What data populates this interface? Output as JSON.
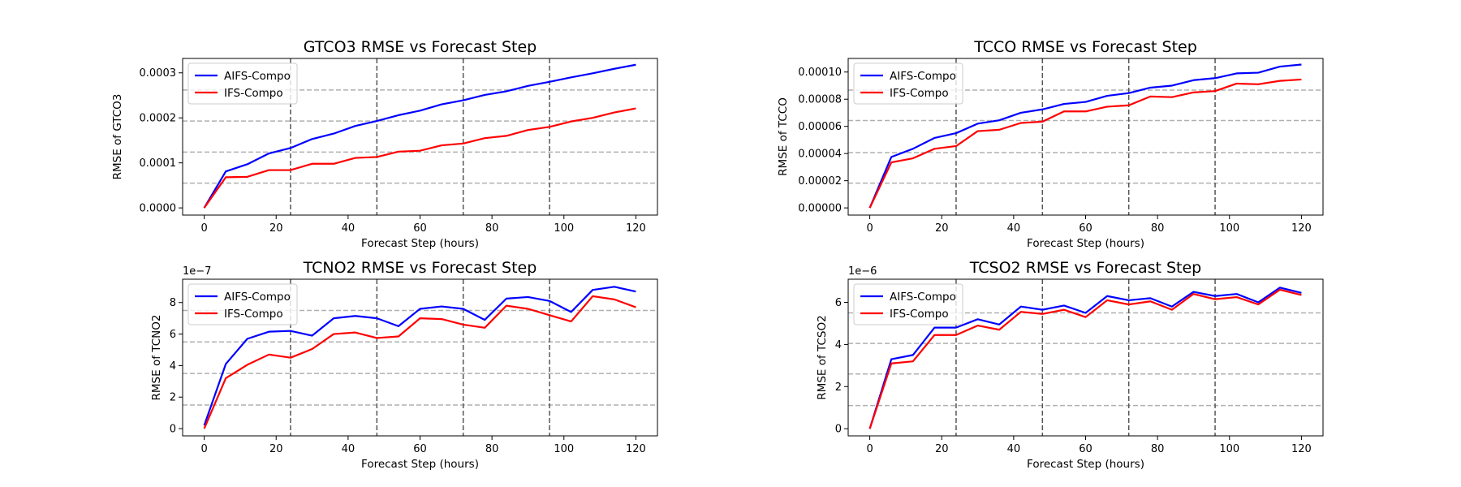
{
  "chart_data": [
    {
      "type": "line",
      "title": "GTCO3 RMSE vs Forecast Step",
      "xlabel": "Forecast Step (hours)",
      "ylabel": "RMSE of GTCO3",
      "offset_text": "",
      "xlim": [
        -6,
        126
      ],
      "ylim": [
        -1.6e-05,
        0.000332
      ],
      "xticks": [
        0,
        20,
        40,
        60,
        80,
        100,
        120
      ],
      "xtick_labels": [
        "0",
        "20",
        "40",
        "60",
        "80",
        "100",
        "120"
      ],
      "yticks": [
        0,
        0.0001,
        0.0002,
        0.0003
      ],
      "ytick_labels": [
        "0.0000",
        "0.0001",
        "0.0002",
        "0.0003"
      ],
      "vlines": [
        24,
        48,
        72,
        96
      ],
      "hlines": [
        5.5e-05,
        0.000124,
        0.000193,
        0.000262
      ],
      "legend": "upper left",
      "x": [
        0,
        6,
        12,
        18,
        24,
        30,
        36,
        42,
        48,
        54,
        60,
        66,
        72,
        78,
        84,
        90,
        96,
        102,
        108,
        114,
        120
      ],
      "series": [
        {
          "name": "AIFS-Compo",
          "color": "#0000ff",
          "values": [
            0.0,
            8.1e-05,
            9.7e-05,
            0.000121,
            0.000133,
            0.000153,
            0.000165,
            0.000182,
            0.000193,
            0.000206,
            0.000216,
            0.00023,
            0.000239,
            0.000251,
            0.000259,
            0.000271,
            0.00028,
            0.00029,
            0.000299,
            0.000309,
            0.000318
          ]
        },
        {
          "name": "IFS-Compo",
          "color": "#ff0000",
          "values": [
            0.0,
            6.8e-05,
            6.9e-05,
            8.4e-05,
            8.4e-05,
            9.8e-05,
            9.8e-05,
            0.000111,
            0.000113,
            0.000125,
            0.000127,
            0.000139,
            0.000143,
            0.000155,
            0.00016,
            0.000173,
            0.00018,
            0.000192,
            0.0002,
            0.000212,
            0.000221
          ]
        }
      ]
    },
    {
      "type": "line",
      "title": "TCCO RMSE vs Forecast Step",
      "xlabel": "Forecast Step (hours)",
      "ylabel": "RMSE of TCCO",
      "offset_text": "",
      "xlim": [
        -6,
        126
      ],
      "ylim": [
        -5.3e-06,
        0.00011
      ],
      "xticks": [
        0,
        20,
        40,
        60,
        80,
        100,
        120
      ],
      "xtick_labels": [
        "0",
        "20",
        "40",
        "60",
        "80",
        "100",
        "120"
      ],
      "yticks": [
        0,
        2e-05,
        4e-05,
        6e-05,
        8e-05,
        0.0001
      ],
      "ytick_labels": [
        "0.00000",
        "0.00002",
        "0.00004",
        "0.00006",
        "0.00008",
        "0.00010"
      ],
      "vlines": [
        24,
        48,
        72,
        96
      ],
      "hlines": [
        1.82e-05,
        4.07e-05,
        6.43e-05,
        8.67e-05
      ],
      "legend": "upper left",
      "x": [
        0,
        6,
        12,
        18,
        24,
        30,
        36,
        42,
        48,
        54,
        60,
        66,
        72,
        78,
        84,
        90,
        96,
        102,
        108,
        114,
        120
      ],
      "series": [
        {
          "name": "AIFS-Compo",
          "color": "#0000ff",
          "values": [
            0.0,
            3.75e-05,
            4.35e-05,
            5.15e-05,
            5.5e-05,
            6.2e-05,
            6.45e-05,
            7e-05,
            7.25e-05,
            7.65e-05,
            7.8e-05,
            8.25e-05,
            8.45e-05,
            8.85e-05,
            9e-05,
            9.4e-05,
            9.55e-05,
            9.9e-05,
            9.95e-05,
            0.000104,
            0.0001055
          ]
        },
        {
          "name": "IFS-Compo",
          "color": "#ff0000",
          "values": [
            0.0,
            3.35e-05,
            3.65e-05,
            4.35e-05,
            4.55e-05,
            5.65e-05,
            5.75e-05,
            6.25e-05,
            6.35e-05,
            7.1e-05,
            7.1e-05,
            7.45e-05,
            7.55e-05,
            8.2e-05,
            8.15e-05,
            8.5e-05,
            8.6e-05,
            9.15e-05,
            9.1e-05,
            9.35e-05,
            9.45e-05
          ]
        }
      ]
    },
    {
      "type": "line",
      "title": "TCNO2 RMSE vs Forecast Step",
      "xlabel": "Forecast Step (hours)",
      "ylabel": "RMSE of TCNO2",
      "offset_text": "1e−7",
      "xlim": [
        -6,
        126
      ],
      "ylim": [
        -0.46,
        9.48
      ],
      "xticks": [
        0,
        20,
        40,
        60,
        80,
        100,
        120
      ],
      "xtick_labels": [
        "0",
        "20",
        "40",
        "60",
        "80",
        "100",
        "120"
      ],
      "yticks": [
        0,
        2,
        4,
        6,
        8
      ],
      "ytick_labels": [
        "0",
        "2",
        "4",
        "6",
        "8"
      ],
      "vlines": [
        24,
        48,
        72,
        96
      ],
      "hlines": [
        1.5,
        3.5,
        5.5,
        7.5
      ],
      "legend": "upper left",
      "x": [
        0,
        6,
        12,
        18,
        24,
        30,
        36,
        42,
        48,
        54,
        60,
        66,
        72,
        78,
        84,
        90,
        96,
        102,
        108,
        114,
        120
      ],
      "series": [
        {
          "name": "AIFS-Compo",
          "color": "#0000ff",
          "values": [
            0.2,
            4.1,
            5.7,
            6.15,
            6.2,
            5.9,
            7.0,
            7.15,
            7.0,
            6.5,
            7.6,
            7.75,
            7.6,
            6.9,
            8.25,
            8.35,
            8.1,
            7.4,
            8.8,
            9.0,
            8.7
          ]
        },
        {
          "name": "IFS-Compo",
          "color": "#ff0000",
          "values": [
            0.0,
            3.2,
            4.05,
            4.7,
            4.5,
            5.05,
            6.0,
            6.1,
            5.75,
            5.85,
            7.0,
            6.95,
            6.6,
            6.4,
            7.8,
            7.6,
            7.2,
            6.8,
            8.4,
            8.2,
            7.7
          ]
        }
      ]
    },
    {
      "type": "line",
      "title": "TCSO2 RMSE vs Forecast Step",
      "xlabel": "Forecast Step (hours)",
      "ylabel": "RMSE of TCSO2",
      "offset_text": "1e−6",
      "xlim": [
        -6,
        126
      ],
      "ylim": [
        -0.34,
        7.1
      ],
      "xticks": [
        0,
        20,
        40,
        60,
        80,
        100,
        120
      ],
      "xtick_labels": [
        "0",
        "20",
        "40",
        "60",
        "80",
        "100",
        "120"
      ],
      "yticks": [
        0,
        2,
        4,
        6
      ],
      "ytick_labels": [
        "0",
        "2",
        "4",
        "6"
      ],
      "vlines": [
        24,
        48,
        72,
        96
      ],
      "hlines": [
        1.1,
        2.6,
        4.05,
        5.5
      ],
      "legend": "upper left",
      "x": [
        0,
        6,
        12,
        18,
        24,
        30,
        36,
        42,
        48,
        54,
        60,
        66,
        72,
        78,
        84,
        90,
        96,
        102,
        108,
        114,
        120
      ],
      "series": [
        {
          "name": "AIFS-Compo",
          "color": "#0000ff",
          "values": [
            0.0,
            3.3,
            3.5,
            4.8,
            4.8,
            5.2,
            4.95,
            5.8,
            5.65,
            5.85,
            5.5,
            6.3,
            6.1,
            6.2,
            5.8,
            6.5,
            6.3,
            6.4,
            6.0,
            6.7,
            6.45
          ]
        },
        {
          "name": "IFS-Compo",
          "color": "#ff0000",
          "values": [
            0.0,
            3.1,
            3.2,
            4.45,
            4.45,
            4.9,
            4.7,
            5.55,
            5.45,
            5.65,
            5.3,
            6.1,
            5.9,
            6.05,
            5.65,
            6.4,
            6.15,
            6.25,
            5.9,
            6.6,
            6.35
          ]
        }
      ]
    }
  ]
}
